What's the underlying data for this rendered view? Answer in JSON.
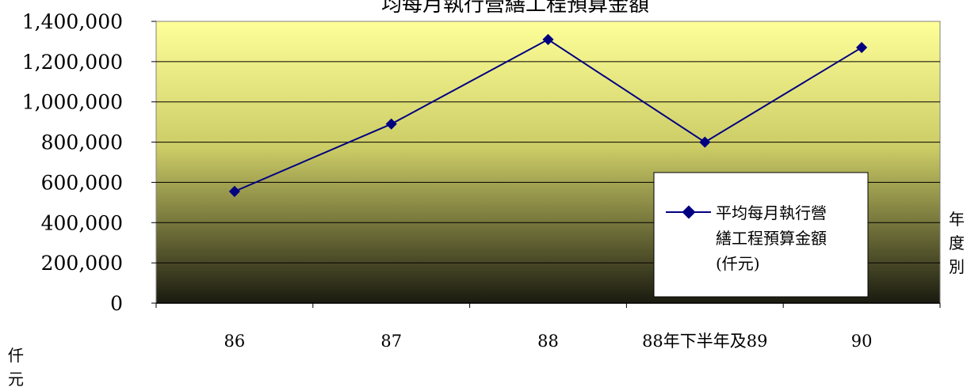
{
  "chart_data": {
    "type": "line",
    "title": "均每月執行營繕工程預算金額",
    "categories": [
      "86",
      "87",
      "88",
      "88年下半年及89",
      "90"
    ],
    "series": [
      {
        "name": "平均每月執行營繕工程預算金額(仟元)",
        "legend_lines": [
          "平均每月執行營",
          "繕工程預算金額",
          "(仟元)"
        ],
        "values": [
          555000,
          890000,
          1310000,
          800000,
          1270000
        ],
        "color": "#000080"
      }
    ],
    "ylim": [
      0,
      1400000
    ],
    "yticks": [
      "0",
      "200,000",
      "400,000",
      "600,000",
      "800,000",
      "1,000,000",
      "1,200,000",
      "1,400,000"
    ],
    "grid": true,
    "legend": "right",
    "xlabel_chars": [
      "年",
      "度",
      "別"
    ],
    "ylabel_chars": [
      "仟",
      "元"
    ],
    "background": {
      "top": "#ffff99",
      "bottom": "#1a1a10"
    }
  }
}
